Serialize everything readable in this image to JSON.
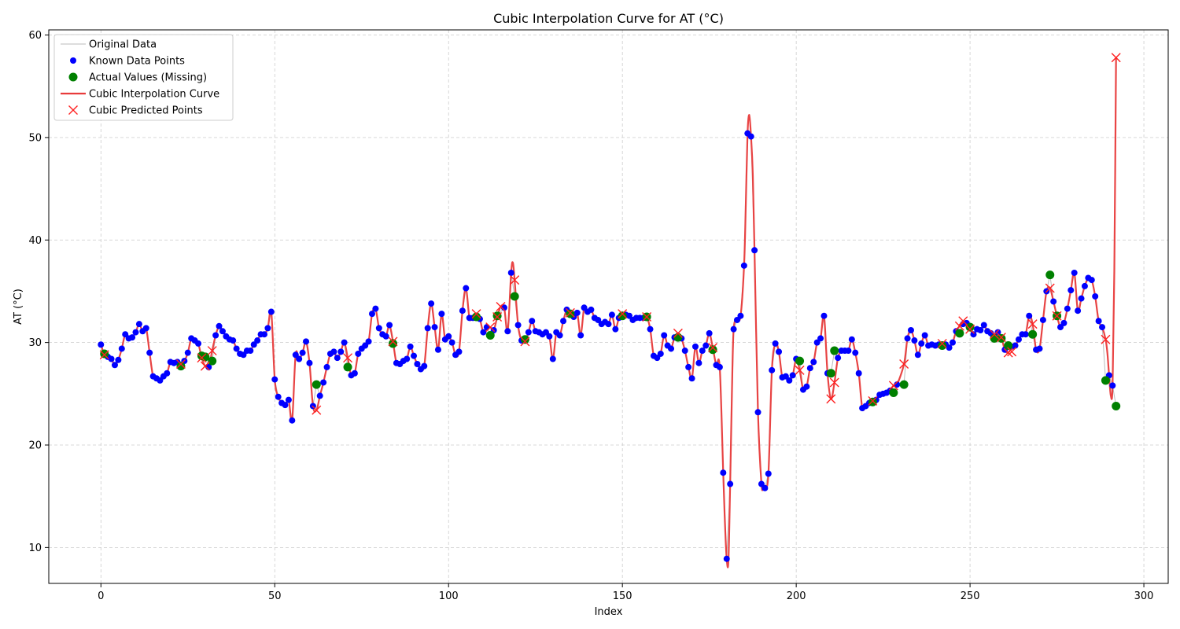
{
  "chart_data": {
    "type": "line",
    "title": "Cubic Interpolation Curve for AT (°C)",
    "xlabel": "Index",
    "ylabel": "AT (°C)",
    "xlim": [
      -15,
      307
    ],
    "ylim": [
      6.5,
      60.5
    ],
    "xticks": [
      0,
      50,
      100,
      150,
      200,
      250,
      300
    ],
    "yticks": [
      10,
      20,
      30,
      40,
      50,
      60
    ],
    "grid": true,
    "legend_position": "top-left",
    "legend": [
      {
        "key": "original",
        "label": "Original Data"
      },
      {
        "key": "known",
        "label": "Known Data Points"
      },
      {
        "key": "actual",
        "label": "Actual Values (Missing)"
      },
      {
        "key": "curve",
        "label": "Cubic Interpolation Curve"
      },
      {
        "key": "predicted",
        "label": "Cubic Predicted Points"
      }
    ],
    "colors": {
      "original": "#bbbbbb",
      "known": "#0000ff",
      "actual": "#008000",
      "curve": "#e83b3b",
      "predicted": "#ff2020"
    },
    "known_points": [
      [
        0,
        29.8
      ],
      [
        2,
        28.6
      ],
      [
        3,
        28.4
      ],
      [
        4,
        27.8
      ],
      [
        5,
        28.3
      ],
      [
        6,
        29.4
      ],
      [
        7,
        30.8
      ],
      [
        8,
        30.4
      ],
      [
        9,
        30.5
      ],
      [
        10,
        31.0
      ],
      [
        11,
        31.8
      ],
      [
        12,
        31.1
      ],
      [
        13,
        31.4
      ],
      [
        14,
        29.0
      ],
      [
        15,
        26.7
      ],
      [
        16,
        26.5
      ],
      [
        17,
        26.3
      ],
      [
        18,
        26.7
      ],
      [
        19,
        27.0
      ],
      [
        20,
        28.1
      ],
      [
        21,
        28.0
      ],
      [
        22,
        28.1
      ],
      [
        24,
        28.2
      ],
      [
        25,
        29.0
      ],
      [
        26,
        30.4
      ],
      [
        27,
        30.2
      ],
      [
        28,
        29.9
      ],
      [
        31,
        27.6
      ],
      [
        33,
        30.7
      ],
      [
        34,
        31.6
      ],
      [
        35,
        31.1
      ],
      [
        36,
        30.6
      ],
      [
        37,
        30.3
      ],
      [
        38,
        30.2
      ],
      [
        39,
        29.4
      ],
      [
        40,
        28.9
      ],
      [
        41,
        28.8
      ],
      [
        42,
        29.2
      ],
      [
        43,
        29.2
      ],
      [
        44,
        29.8
      ],
      [
        45,
        30.2
      ],
      [
        46,
        30.8
      ],
      [
        47,
        30.8
      ],
      [
        48,
        31.4
      ],
      [
        49,
        33.0
      ],
      [
        50,
        26.4
      ],
      [
        51,
        24.7
      ],
      [
        52,
        24.1
      ],
      [
        53,
        23.9
      ],
      [
        54,
        24.4
      ],
      [
        55,
        22.4
      ],
      [
        56,
        28.8
      ],
      [
        57,
        28.4
      ],
      [
        58,
        29.0
      ],
      [
        59,
        30.1
      ],
      [
        60,
        28.0
      ],
      [
        61,
        23.8
      ],
      [
        63,
        24.8
      ],
      [
        64,
        26.1
      ],
      [
        65,
        27.6
      ],
      [
        66,
        28.9
      ],
      [
        67,
        29.1
      ],
      [
        68,
        28.5
      ],
      [
        69,
        29.1
      ],
      [
        70,
        30.0
      ],
      [
        72,
        26.8
      ],
      [
        73,
        27.0
      ],
      [
        74,
        28.9
      ],
      [
        75,
        29.4
      ],
      [
        76,
        29.7
      ],
      [
        77,
        30.1
      ],
      [
        78,
        32.8
      ],
      [
        79,
        33.3
      ],
      [
        80,
        31.4
      ],
      [
        81,
        30.8
      ],
      [
        82,
        30.6
      ],
      [
        83,
        31.7
      ],
      [
        85,
        28.0
      ],
      [
        86,
        27.9
      ],
      [
        87,
        28.2
      ],
      [
        88,
        28.4
      ],
      [
        89,
        29.6
      ],
      [
        90,
        28.7
      ],
      [
        91,
        27.9
      ],
      [
        92,
        27.4
      ],
      [
        93,
        27.7
      ],
      [
        94,
        31.4
      ],
      [
        95,
        33.8
      ],
      [
        96,
        31.5
      ],
      [
        97,
        29.3
      ],
      [
        98,
        32.8
      ],
      [
        99,
        30.3
      ],
      [
        100,
        30.6
      ],
      [
        101,
        30.0
      ],
      [
        102,
        28.8
      ],
      [
        103,
        29.1
      ],
      [
        104,
        33.1
      ],
      [
        105,
        35.3
      ],
      [
        106,
        32.4
      ],
      [
        107,
        32.4
      ],
      [
        109,
        32.3
      ],
      [
        110,
        31.0
      ],
      [
        111,
        31.5
      ],
      [
        113,
        31.2
      ],
      [
        116,
        33.4
      ],
      [
        117,
        31.1
      ],
      [
        118,
        36.8
      ],
      [
        120,
        31.7
      ],
      [
        121,
        30.2
      ],
      [
        123,
        31.0
      ],
      [
        124,
        32.1
      ],
      [
        125,
        31.1
      ],
      [
        126,
        31.0
      ],
      [
        127,
        30.8
      ],
      [
        128,
        31.0
      ],
      [
        129,
        30.6
      ],
      [
        130,
        28.4
      ],
      [
        131,
        31.0
      ],
      [
        132,
        30.7
      ],
      [
        133,
        32.1
      ],
      [
        134,
        33.2
      ],
      [
        136,
        32.5
      ],
      [
        137,
        32.9
      ],
      [
        138,
        30.7
      ],
      [
        139,
        33.4
      ],
      [
        140,
        33.0
      ],
      [
        141,
        33.2
      ],
      [
        142,
        32.4
      ],
      [
        143,
        32.2
      ],
      [
        144,
        31.8
      ],
      [
        145,
        32.0
      ],
      [
        146,
        31.8
      ],
      [
        147,
        32.7
      ],
      [
        148,
        31.3
      ],
      [
        149,
        32.4
      ],
      [
        151,
        32.7
      ],
      [
        152,
        32.6
      ],
      [
        153,
        32.2
      ],
      [
        154,
        32.4
      ],
      [
        155,
        32.4
      ],
      [
        156,
        32.4
      ],
      [
        158,
        31.3
      ],
      [
        159,
        28.7
      ],
      [
        160,
        28.5
      ],
      [
        161,
        28.9
      ],
      [
        162,
        30.7
      ],
      [
        163,
        29.7
      ],
      [
        164,
        29.4
      ],
      [
        165,
        30.5
      ],
      [
        167,
        30.4
      ],
      [
        168,
        29.2
      ],
      [
        169,
        27.6
      ],
      [
        170,
        26.5
      ],
      [
        171,
        29.6
      ],
      [
        172,
        28.0
      ],
      [
        173,
        29.2
      ],
      [
        174,
        29.7
      ],
      [
        175,
        30.9
      ],
      [
        177,
        27.8
      ],
      [
        178,
        27.6
      ],
      [
        179,
        17.3
      ],
      [
        180,
        8.9
      ],
      [
        181,
        16.2
      ],
      [
        182,
        31.3
      ],
      [
        183,
        32.2
      ],
      [
        184,
        32.6
      ],
      [
        185,
        37.5
      ],
      [
        186,
        50.4
      ],
      [
        187,
        50.1
      ],
      [
        188,
        39.0
      ],
      [
        189,
        23.2
      ],
      [
        190,
        16.2
      ],
      [
        191,
        15.8
      ],
      [
        192,
        17.2
      ],
      [
        193,
        27.3
      ],
      [
        194,
        29.9
      ],
      [
        195,
        29.1
      ],
      [
        196,
        26.6
      ],
      [
        197,
        26.7
      ],
      [
        198,
        26.3
      ],
      [
        199,
        26.8
      ],
      [
        200,
        28.4
      ],
      [
        202,
        25.4
      ],
      [
        203,
        25.7
      ],
      [
        204,
        27.5
      ],
      [
        205,
        28.1
      ],
      [
        206,
        30.0
      ],
      [
        207,
        30.4
      ],
      [
        208,
        32.6
      ],
      [
        209,
        27.0
      ],
      [
        212,
        28.5
      ],
      [
        213,
        29.2
      ],
      [
        214,
        29.2
      ],
      [
        215,
        29.2
      ],
      [
        216,
        30.3
      ],
      [
        217,
        29.0
      ],
      [
        218,
        27.0
      ],
      [
        219,
        23.6
      ],
      [
        220,
        23.8
      ],
      [
        221,
        24.1
      ],
      [
        223,
        24.4
      ],
      [
        224,
        24.9
      ],
      [
        225,
        25.0
      ],
      [
        226,
        25.1
      ],
      [
        227,
        25.3
      ],
      [
        229,
        25.9
      ],
      [
        232,
        30.4
      ],
      [
        233,
        31.2
      ],
      [
        234,
        30.2
      ],
      [
        235,
        28.8
      ],
      [
        236,
        29.9
      ],
      [
        237,
        30.7
      ],
      [
        238,
        29.7
      ],
      [
        239,
        29.8
      ],
      [
        240,
        29.7
      ],
      [
        241,
        29.8
      ],
      [
        243,
        29.8
      ],
      [
        244,
        29.5
      ],
      [
        245,
        30.0
      ],
      [
        246,
        31.1
      ],
      [
        248,
        31.8
      ],
      [
        249,
        31.9
      ],
      [
        251,
        30.8
      ],
      [
        252,
        31.3
      ],
      [
        253,
        31.2
      ],
      [
        254,
        31.7
      ],
      [
        255,
        31.1
      ],
      [
        256,
        30.9
      ],
      [
        258,
        31.0
      ],
      [
        260,
        29.3
      ],
      [
        262,
        29.6
      ],
      [
        263,
        29.7
      ],
      [
        264,
        30.3
      ],
      [
        265,
        30.8
      ],
      [
        266,
        30.8
      ],
      [
        267,
        32.6
      ],
      [
        269,
        29.3
      ],
      [
        270,
        29.4
      ],
      [
        271,
        32.2
      ],
      [
        272,
        35.0
      ],
      [
        274,
        34.0
      ],
      [
        276,
        31.5
      ],
      [
        277,
        31.9
      ],
      [
        278,
        33.3
      ],
      [
        279,
        35.1
      ],
      [
        280,
        36.8
      ],
      [
        281,
        33.1
      ],
      [
        282,
        34.3
      ],
      [
        283,
        35.5
      ],
      [
        284,
        36.3
      ],
      [
        285,
        36.1
      ],
      [
        286,
        34.5
      ],
      [
        287,
        32.1
      ],
      [
        288,
        31.5
      ],
      [
        290,
        26.8
      ],
      [
        291,
        25.8
      ]
    ],
    "actual_missing": [
      [
        1,
        28.9
      ],
      [
        23,
        27.7
      ],
      [
        29,
        28.7
      ],
      [
        30,
        28.6
      ],
      [
        32,
        28.2
      ],
      [
        62,
        25.9
      ],
      [
        71,
        27.6
      ],
      [
        84,
        29.9
      ],
      [
        108,
        32.5
      ],
      [
        112,
        30.7
      ],
      [
        114,
        32.6
      ],
      [
        119,
        34.5
      ],
      [
        122,
        30.3
      ],
      [
        135,
        32.8
      ],
      [
        150,
        32.6
      ],
      [
        157,
        32.5
      ],
      [
        166,
        30.5
      ],
      [
        176,
        29.3
      ],
      [
        201,
        28.2
      ],
      [
        210,
        27.0
      ],
      [
        211,
        29.2
      ],
      [
        222,
        24.2
      ],
      [
        228,
        25.1
      ],
      [
        231,
        25.9
      ],
      [
        242,
        29.7
      ],
      [
        247,
        30.9
      ],
      [
        250,
        31.5
      ],
      [
        257,
        30.4
      ],
      [
        259,
        30.4
      ],
      [
        261,
        29.7
      ],
      [
        268,
        30.8
      ],
      [
        273,
        36.6
      ],
      [
        275,
        32.6
      ],
      [
        289,
        26.3
      ],
      [
        292,
        23.8
      ]
    ],
    "predicted_points": [
      [
        1,
        28.8
      ],
      [
        23,
        27.9
      ],
      [
        29,
        28.5
      ],
      [
        30,
        27.7
      ],
      [
        32,
        29.2
      ],
      [
        62,
        23.4
      ],
      [
        71,
        28.5
      ],
      [
        84,
        30.1
      ],
      [
        108,
        32.8
      ],
      [
        112,
        31.5
      ],
      [
        114,
        32.5
      ],
      [
        115,
        33.5
      ],
      [
        119,
        36.1
      ],
      [
        122,
        30.1
      ],
      [
        135,
        32.9
      ],
      [
        150,
        32.8
      ],
      [
        157,
        32.5
      ],
      [
        166,
        30.9
      ],
      [
        176,
        29.5
      ],
      [
        201,
        27.3
      ],
      [
        210,
        24.5
      ],
      [
        211,
        26.1
      ],
      [
        222,
        24.3
      ],
      [
        228,
        25.8
      ],
      [
        231,
        27.9
      ],
      [
        242,
        29.9
      ],
      [
        247,
        31.6
      ],
      [
        248,
        32.1
      ],
      [
        250,
        31.3
      ],
      [
        257,
        30.8
      ],
      [
        259,
        30.5
      ],
      [
        261,
        29.0
      ],
      [
        262,
        29.1
      ],
      [
        268,
        31.8
      ],
      [
        273,
        35.3
      ],
      [
        275,
        32.6
      ],
      [
        289,
        30.3
      ],
      [
        292,
        57.8
      ]
    ],
    "curve_extra": [
      [
        118.5,
        37.8
      ],
      [
        185.5,
        43.5
      ],
      [
        186.5,
        52.2
      ],
      [
        187.5,
        46.5
      ],
      [
        180.5,
        8.7
      ],
      [
        179.5,
        12.4
      ],
      [
        181.5,
        25.0
      ],
      [
        190.5,
        15.9
      ],
      [
        289.5,
        29.0
      ],
      [
        290.5,
        24.8
      ],
      [
        291.5,
        37.0
      ]
    ]
  }
}
